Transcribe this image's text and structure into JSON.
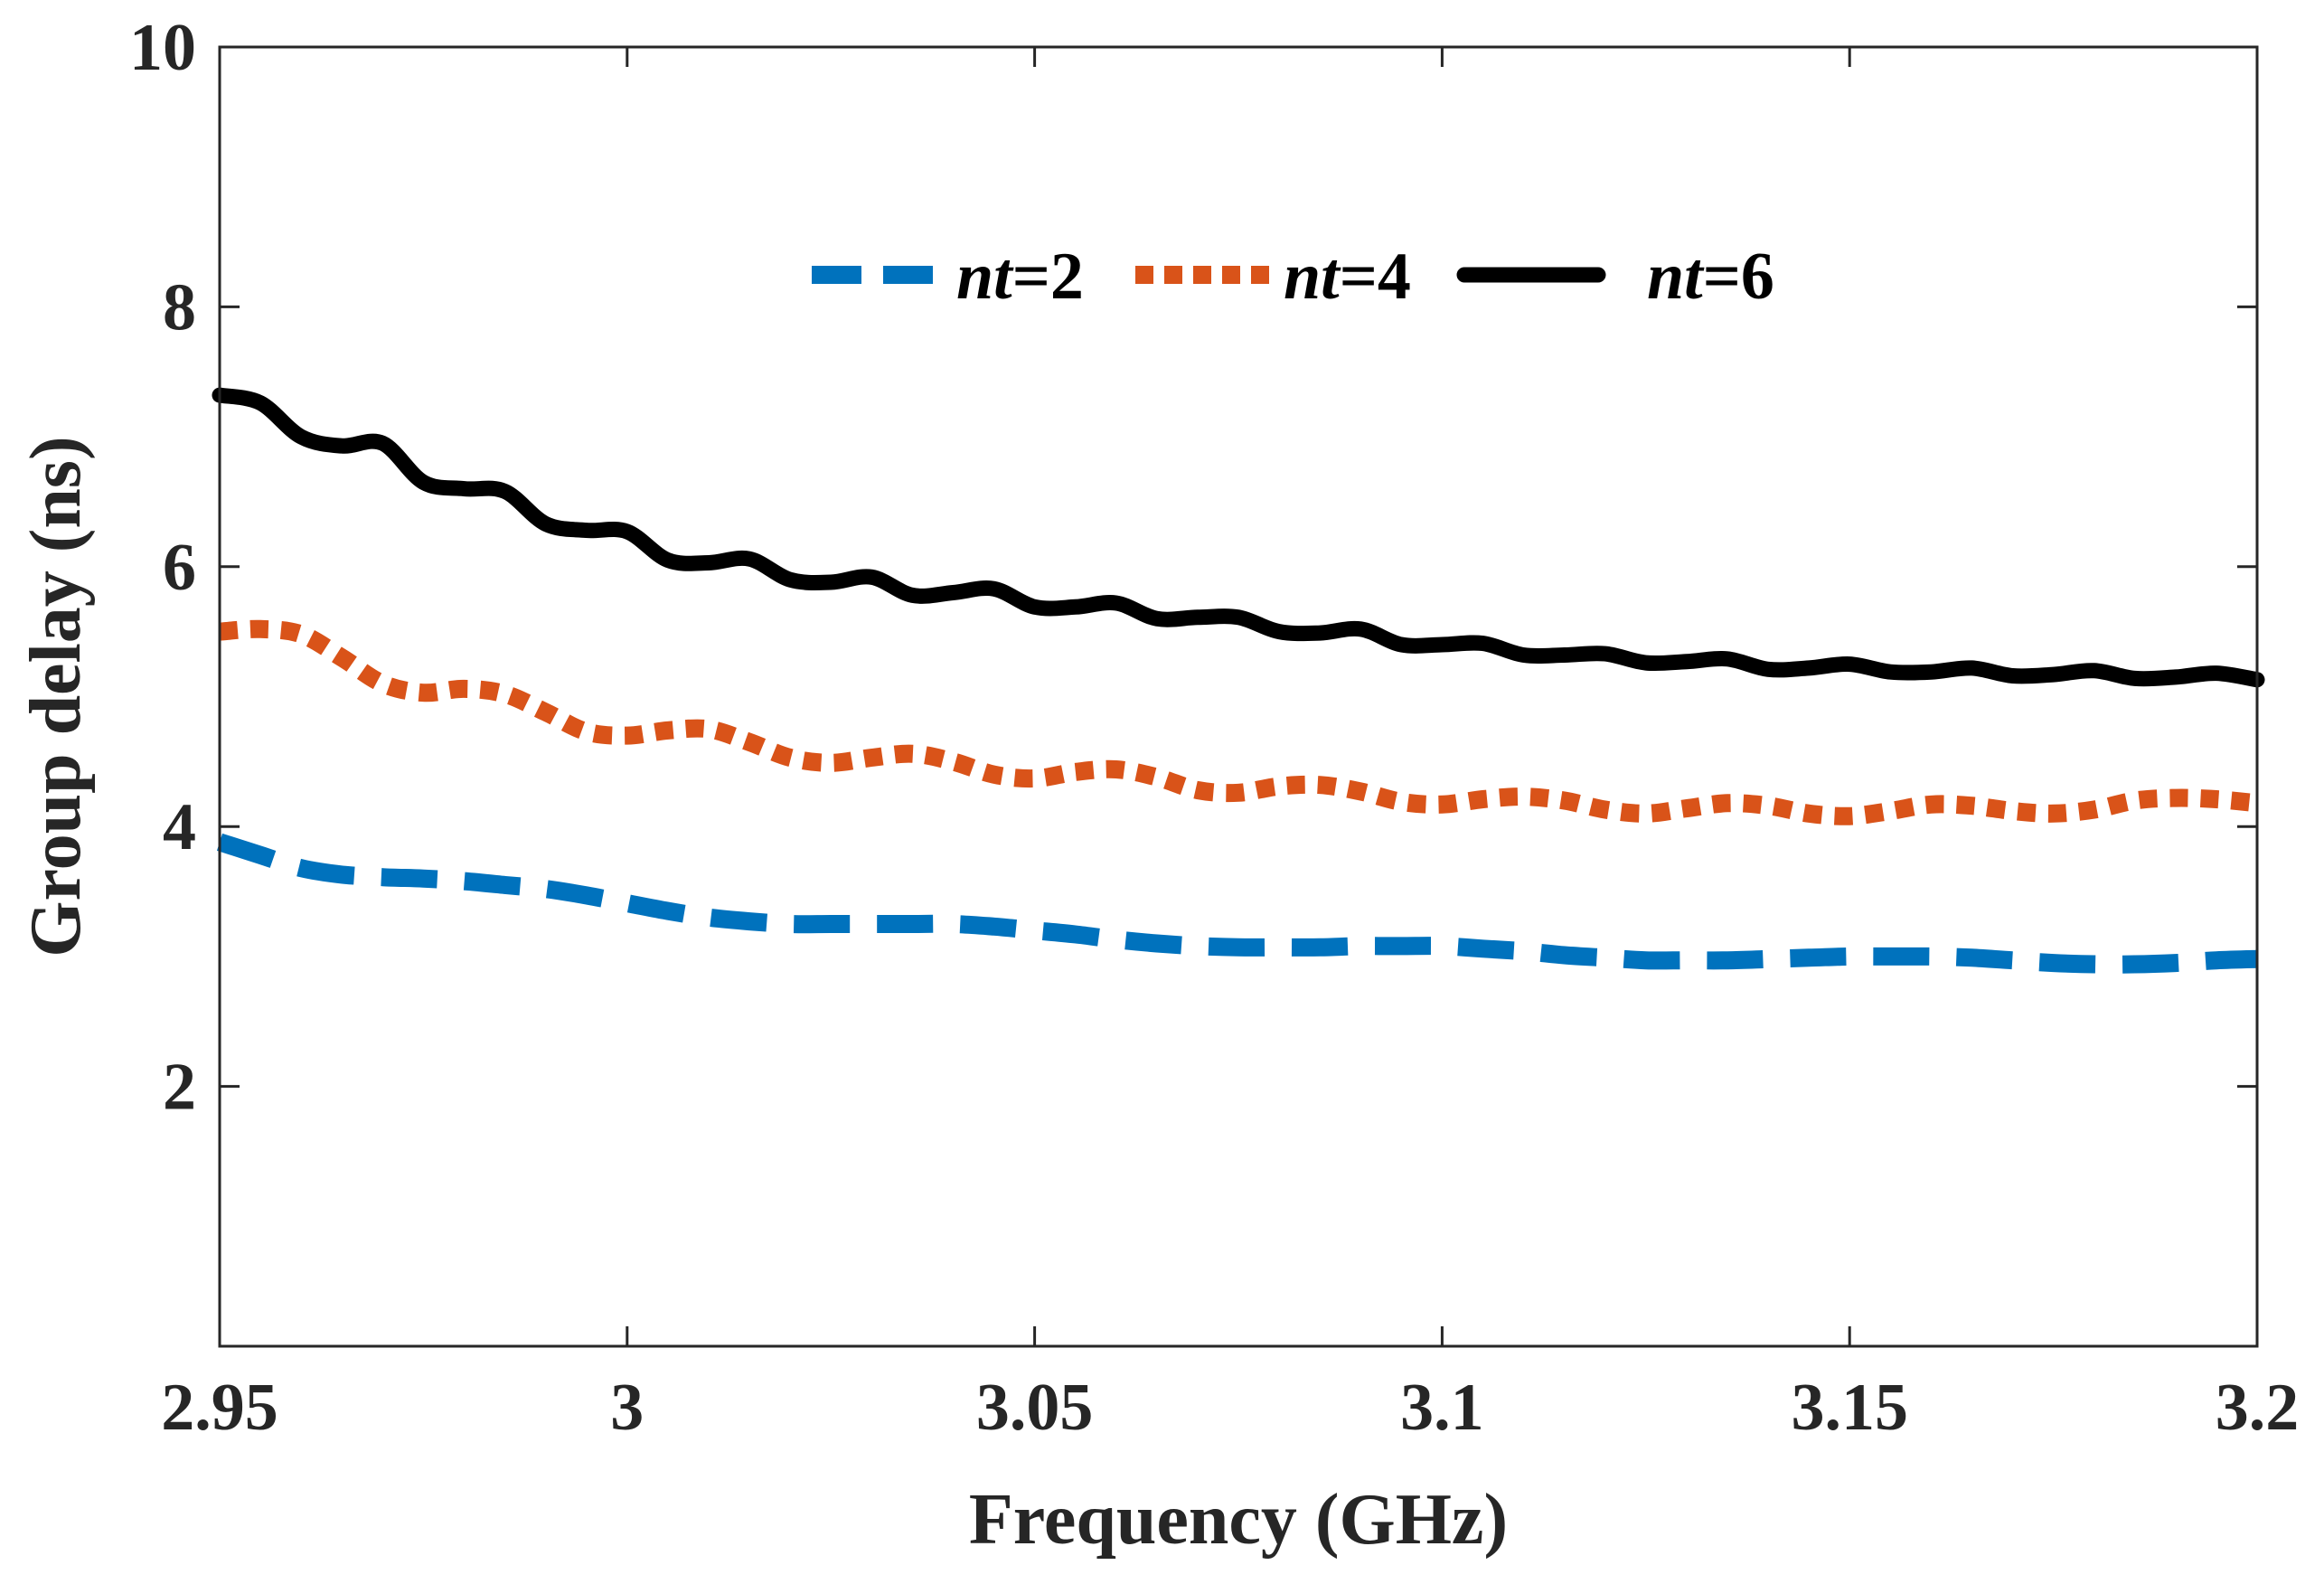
{
  "chart_data": {
    "type": "line",
    "title": "",
    "xlabel": "Frequency (GHz)",
    "ylabel": "Group delay (ns)",
    "xlim": [
      2.95,
      3.2
    ],
    "ylim": [
      0,
      10
    ],
    "xticks": [
      2.95,
      3.0,
      3.05,
      3.1,
      3.15,
      3.2
    ],
    "xtick_labels": [
      "2.95",
      "3",
      "3.05",
      "3.1",
      "3.15",
      "3.2"
    ],
    "yticks": [
      2,
      4,
      6,
      8,
      10
    ],
    "ytick_labels": [
      "2",
      "4",
      "6",
      "8",
      "10"
    ],
    "grid": false,
    "legend": {
      "placement": "top-center",
      "orientation": "horizontal"
    },
    "x": [
      2.95,
      2.955,
      2.96,
      2.965,
      2.97,
      2.975,
      2.98,
      2.985,
      2.99,
      2.995,
      3.0,
      3.005,
      3.01,
      3.015,
      3.02,
      3.025,
      3.03,
      3.035,
      3.04,
      3.045,
      3.05,
      3.055,
      3.06,
      3.065,
      3.07,
      3.075,
      3.08,
      3.085,
      3.09,
      3.095,
      3.1,
      3.105,
      3.11,
      3.115,
      3.12,
      3.125,
      3.13,
      3.135,
      3.14,
      3.145,
      3.15,
      3.155,
      3.16,
      3.165,
      3.17,
      3.175,
      3.18,
      3.185,
      3.19,
      3.195,
      3.2
    ],
    "series": [
      {
        "name_prefix": "nt",
        "name_suffix": "=2",
        "color": "#0072BD",
        "style": "dashed",
        "values": [
          3.88,
          3.78,
          3.68,
          3.63,
          3.61,
          3.6,
          3.58,
          3.55,
          3.52,
          3.47,
          3.41,
          3.35,
          3.3,
          3.27,
          3.25,
          3.25,
          3.25,
          3.25,
          3.25,
          3.23,
          3.2,
          3.17,
          3.13,
          3.1,
          3.08,
          3.07,
          3.07,
          3.07,
          3.08,
          3.08,
          3.08,
          3.06,
          3.04,
          3.01,
          2.99,
          2.97,
          2.97,
          2.97,
          2.98,
          2.99,
          3.0,
          3.0,
          3.0,
          2.99,
          2.97,
          2.95,
          2.94,
          2.94,
          2.95,
          2.97,
          2.98
        ]
      },
      {
        "name_prefix": "nt",
        "name_suffix": "=4",
        "color": "#D95319",
        "style": "dotted",
        "values": [
          5.5,
          5.52,
          5.48,
          5.3,
          5.1,
          5.03,
          5.06,
          5.02,
          4.88,
          4.73,
          4.7,
          4.74,
          4.75,
          4.65,
          4.53,
          4.49,
          4.53,
          4.56,
          4.5,
          4.4,
          4.37,
          4.42,
          4.44,
          4.38,
          4.28,
          4.26,
          4.31,
          4.32,
          4.27,
          4.19,
          4.17,
          4.21,
          4.23,
          4.2,
          4.13,
          4.1,
          4.14,
          4.18,
          4.16,
          4.1,
          4.08,
          4.12,
          4.17,
          4.16,
          4.12,
          4.1,
          4.13,
          4.2,
          4.22,
          4.21,
          4.18
        ]
      },
      {
        "name_prefix": "nt",
        "name_suffix": "=6",
        "color": "#000000",
        "style": "solid",
        "values": [
          7.32,
          7.26,
          7.0,
          6.93,
          6.95,
          6.65,
          6.6,
          6.58,
          6.33,
          6.28,
          6.27,
          6.05,
          6.03,
          6.06,
          5.9,
          5.88,
          5.92,
          5.78,
          5.8,
          5.83,
          5.69,
          5.69,
          5.72,
          5.6,
          5.61,
          5.61,
          5.5,
          5.49,
          5.52,
          5.4,
          5.4,
          5.41,
          5.32,
          5.32,
          5.33,
          5.26,
          5.27,
          5.29,
          5.21,
          5.22,
          5.25,
          5.19,
          5.19,
          5.22,
          5.16,
          5.17,
          5.2,
          5.14,
          5.15,
          5.18,
          5.13
        ]
      }
    ]
  }
}
